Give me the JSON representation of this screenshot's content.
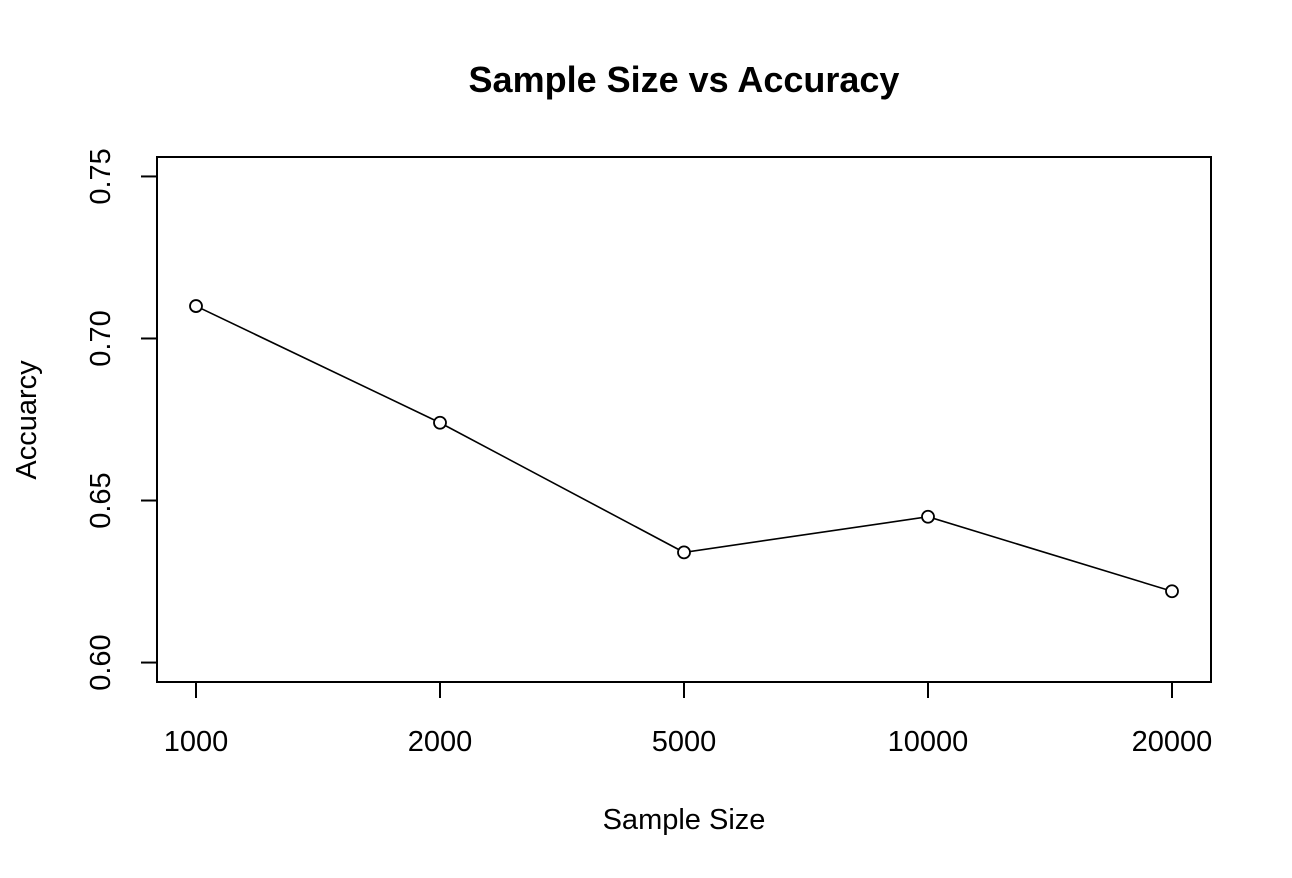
{
  "chart_data": {
    "type": "line",
    "title": "Sample Size vs Accuracy",
    "xlabel": "Sample Size",
    "ylabel": "Accuarcy",
    "categories": [
      "1000",
      "2000",
      "5000",
      "10000",
      "20000"
    ],
    "series": [
      {
        "values": [
          0.71,
          0.674,
          0.634,
          0.645,
          0.622
        ]
      }
    ],
    "ylim": [
      0.594,
      0.756
    ],
    "yticks": [
      0.6,
      0.65,
      0.7,
      0.75
    ],
    "ytick_labels": [
      "0.60",
      "0.65",
      "0.70",
      "0.75"
    ],
    "grid": false,
    "markers": "open-circle",
    "line_color": "#000000"
  }
}
